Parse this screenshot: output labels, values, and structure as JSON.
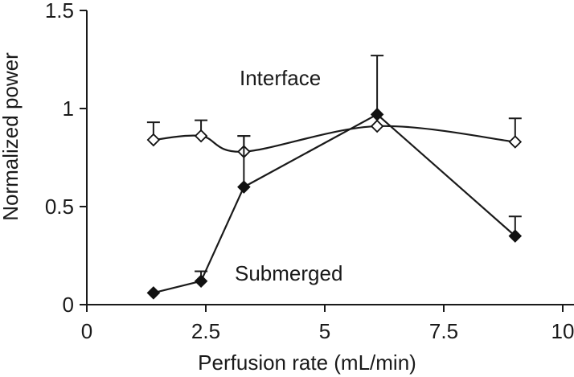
{
  "chart_data": {
    "type": "line",
    "title": "",
    "xlabel": "Perfusion rate (mL/min)",
    "ylabel": "Normalized power",
    "xlim": [
      0,
      10
    ],
    "ylim": [
      0,
      1.5
    ],
    "x_ticks": [
      0,
      2.5,
      5,
      7.5,
      10
    ],
    "x_tick_labels": [
      "0",
      "2.5",
      "5",
      "7.5",
      "10"
    ],
    "y_ticks": [
      0,
      0.5,
      1,
      1.5
    ],
    "y_tick_labels": [
      "0",
      "0.5",
      "1",
      "1.5"
    ],
    "grid": false,
    "series": [
      {
        "name": "Interface",
        "marker": "open-diamond",
        "curve": "smooth",
        "x": [
          1.4,
          2.4,
          3.3,
          6.1,
          9.0
        ],
        "y": [
          0.84,
          0.86,
          0.78,
          0.91,
          0.83
        ],
        "err_upper": [
          0.09,
          0.08,
          0.08,
          0.0,
          0.12
        ]
      },
      {
        "name": "Submerged",
        "marker": "filled-diamond",
        "curve": "straight",
        "x": [
          1.4,
          2.4,
          3.3,
          6.1,
          9.0
        ],
        "y": [
          0.06,
          0.12,
          0.6,
          0.97,
          0.35
        ],
        "err_upper": [
          0.0,
          0.05,
          0.26,
          0.3,
          0.1
        ]
      }
    ]
  }
}
